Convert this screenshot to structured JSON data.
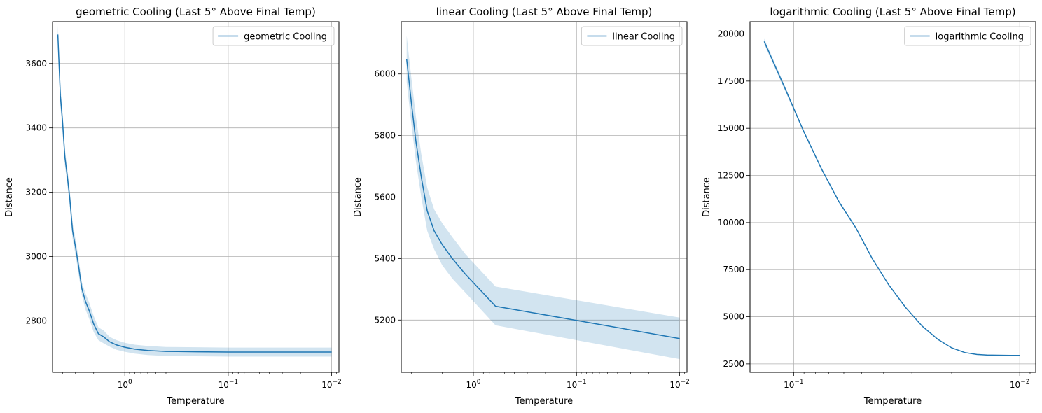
{
  "colors": {
    "line": "#1f77b4",
    "band": "#1f77b4"
  },
  "chart_data": [
    {
      "type": "line",
      "title": "geometric Cooling (Last 5° Above Final Temp)",
      "xlabel": "Temperature",
      "ylabel": "Distance",
      "xscale": "log",
      "x_inverted": true,
      "xlim": [
        5.0,
        0.0085
      ],
      "ylim": [
        2640,
        3730
      ],
      "grid": true,
      "legend_position": "top-right",
      "x_ticks": [
        {
          "value": 1,
          "label": "10^0",
          "base": "10",
          "exp": "0"
        },
        {
          "value": 0.1,
          "label": "10^-1",
          "base": "10",
          "exp": "−1"
        },
        {
          "value": 0.01,
          "label": "10^-2",
          "base": "10",
          "exp": "−2"
        }
      ],
      "y_ticks": [
        2800,
        3000,
        3200,
        3400,
        3600
      ],
      "series": [
        {
          "name": "geometric Cooling",
          "x": [
            4.44,
            4.35,
            4.2,
            4.0,
            3.8,
            3.6,
            3.4,
            3.2,
            3.0,
            2.8,
            2.6,
            2.4,
            2.2,
            2.0,
            1.8,
            1.6,
            1.4,
            1.2,
            1.0,
            0.8,
            0.6,
            0.4,
            0.2,
            0.1,
            0.05,
            0.01
          ],
          "y": [
            3690,
            3620,
            3500,
            3420,
            3310,
            3250,
            3180,
            3080,
            3030,
            2970,
            2900,
            2860,
            2830,
            2790,
            2760,
            2750,
            2735,
            2725,
            2718,
            2712,
            2708,
            2705,
            2704,
            2703,
            2703,
            2703
          ],
          "lower": [
            3660,
            3590,
            3470,
            3390,
            3285,
            3225,
            3155,
            3055,
            3005,
            2945,
            2880,
            2835,
            2805,
            2765,
            2740,
            2730,
            2720,
            2710,
            2704,
            2698,
            2694,
            2691,
            2690,
            2689,
            2689,
            2689
          ],
          "upper": [
            3720,
            3650,
            3530,
            3450,
            3335,
            3275,
            3205,
            3105,
            3055,
            2995,
            2920,
            2885,
            2855,
            2815,
            2780,
            2770,
            2750,
            2740,
            2732,
            2726,
            2722,
            2719,
            2718,
            2717,
            2717,
            2717
          ]
        }
      ]
    },
    {
      "type": "line",
      "title": "linear Cooling (Last 5° Above Final Temp)",
      "xlabel": "Temperature",
      "ylabel": "Distance",
      "xscale": "log",
      "x_inverted": true,
      "xlim": [
        5.0,
        0.0085
      ],
      "ylim": [
        5030,
        6170
      ],
      "grid": true,
      "legend_position": "top-right",
      "x_ticks": [
        {
          "value": 1,
          "label": "10^0",
          "base": "10",
          "exp": "0"
        },
        {
          "value": 0.1,
          "label": "10^-1",
          "base": "10",
          "exp": "−1"
        },
        {
          "value": 0.01,
          "label": "10^-2",
          "base": "10",
          "exp": "−2"
        }
      ],
      "y_ticks": [
        5200,
        5400,
        5600,
        5800,
        6000
      ],
      "series": [
        {
          "name": "linear Cooling",
          "x": [
            4.43,
            4.0,
            3.6,
            3.2,
            2.8,
            2.4,
            2.0,
            1.6,
            1.2,
            0.61,
            0.01
          ],
          "y": [
            6048,
            5910,
            5780,
            5665,
            5555,
            5490,
            5445,
            5400,
            5350,
            5245,
            5140
          ],
          "lower": [
            5975,
            5840,
            5715,
            5600,
            5490,
            5430,
            5378,
            5335,
            5290,
            5183,
            5073
          ],
          "upper": [
            6125,
            5990,
            5860,
            5740,
            5630,
            5560,
            5515,
            5470,
            5415,
            5309,
            5208
          ]
        }
      ]
    },
    {
      "type": "line",
      "title": "logarithmic Cooling (Last 5° Above Final Temp)",
      "xlabel": "Temperature",
      "ylabel": "Distance",
      "xscale": "log",
      "x_inverted": true,
      "xlim": [
        0.156,
        0.0085
      ],
      "ylim": [
        2050,
        20650
      ],
      "grid": true,
      "legend_position": "top-right",
      "x_ticks": [
        {
          "value": 0.1,
          "label": "10^-1",
          "base": "10",
          "exp": "−1"
        },
        {
          "value": 0.01,
          "label": "10^-2",
          "base": "10",
          "exp": "−2"
        }
      ],
      "y_ticks": [
        2500,
        5000,
        7500,
        10000,
        12500,
        15000,
        17500,
        20000
      ],
      "series": [
        {
          "name": "logarithmic Cooling",
          "x": [
            0.135,
            0.11,
            0.09,
            0.075,
            0.063,
            0.053,
            0.045,
            0.038,
            0.032,
            0.027,
            0.023,
            0.02,
            0.0175,
            0.0155,
            0.014,
            0.0125,
            0.011,
            0.01
          ],
          "y": [
            19600,
            17200,
            14800,
            12800,
            11100,
            9700,
            8100,
            6700,
            5500,
            4500,
            3800,
            3350,
            3100,
            3000,
            2970,
            2960,
            2950,
            2950
          ],
          "lower": [
            19450,
            17080,
            14720,
            12740,
            11050,
            9650,
            8060,
            6670,
            5480,
            4480,
            3785,
            3335,
            3085,
            2985,
            2955,
            2945,
            2935,
            2935
          ],
          "upper": [
            19750,
            17320,
            14880,
            12860,
            11150,
            9750,
            8140,
            6730,
            5520,
            4520,
            3815,
            3365,
            3115,
            3015,
            2985,
            2975,
            2965,
            2965
          ]
        }
      ]
    }
  ]
}
